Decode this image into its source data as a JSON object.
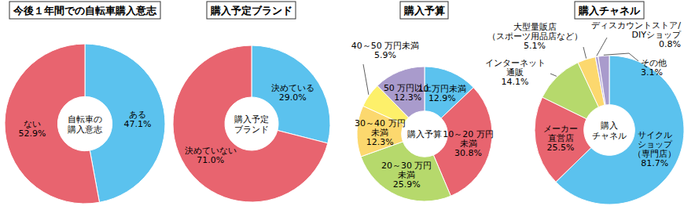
{
  "chart_data": [
    {
      "type": "pie",
      "title": "今後１年間での自転車購入意志",
      "center_label": "自転車の\n購入意志",
      "categories": [
        "ある",
        "ない"
      ],
      "values": [
        47.1,
        52.9
      ],
      "value_labels": [
        "47.1%",
        "52.9%"
      ],
      "colors": [
        "#5bc2ee",
        "#e8646f"
      ],
      "data_labels": true
    },
    {
      "type": "pie",
      "title": "購入予定ブランド",
      "center_label": "購入予定\nブランド",
      "categories": [
        "決めている",
        "決めていない"
      ],
      "values": [
        29.0,
        71.0
      ],
      "value_labels": [
        "29.0%",
        "71.0%"
      ],
      "colors": [
        "#5bc2ee",
        "#e8646f"
      ],
      "data_labels": true
    },
    {
      "type": "pie",
      "title": "購入予算",
      "center_label": "購入予算",
      "categories": [
        "10 万円未満",
        "10～20 万円\n未満",
        "20～30 万円\n未満",
        "30～40 万円\n未満",
        "40～50 万円未満",
        "50 万円以上"
      ],
      "values": [
        12.9,
        30.8,
        25.9,
        12.3,
        5.9,
        12.3
      ],
      "value_labels": [
        "12.9%",
        "30.8%",
        "25.9%",
        "12.3%",
        "5.9%",
        "12.3%"
      ],
      "colors": [
        "#5bc2ee",
        "#e8646f",
        "#b6d96c",
        "#fcd86e",
        "#fdf06a",
        "#a99bcc"
      ],
      "data_labels": true
    },
    {
      "type": "pie",
      "title": "購入チャネル",
      "center_label": "購入\nチャネル",
      "categories": [
        "サイクル\nショップ\n（専門店）",
        "メーカー\n直営店",
        "インターネット\n通販",
        "大型量販店\n（スポーツ用品店など）",
        "ディスカウントストア/\nDIYショップ",
        "その他"
      ],
      "values": [
        81.7,
        25.5,
        14.1,
        5.1,
        0.8,
        3.1
      ],
      "value_labels": [
        "81.7%",
        "25.5%",
        "14.1%",
        "5.1%",
        "0.8%",
        "3.1%"
      ],
      "colors": [
        "#5bc2ee",
        "#e8646f",
        "#b6d96c",
        "#fcd86e",
        "#b3a6d4",
        "#a99bcc"
      ],
      "data_labels": true
    }
  ]
}
